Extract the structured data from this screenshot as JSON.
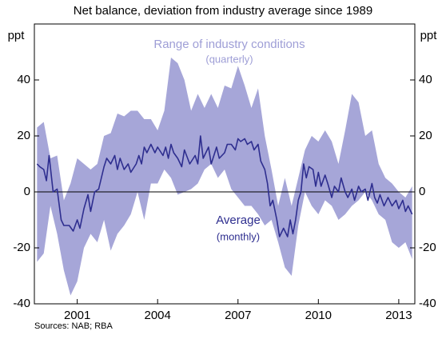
{
  "chart_data": {
    "type": "line",
    "subtitle": "Net balance, deviation from industry average since 1989",
    "y_label_left": "ppt",
    "y_label_right": "ppt",
    "source": "Sources: NAB; RBA",
    "xlim": [
      1999.4,
      2013.6
    ],
    "xticks": [
      2001,
      2004,
      2007,
      2010,
      2013
    ],
    "ylim": [
      -40,
      60
    ],
    "yticks": [
      -40,
      -20,
      0,
      20,
      40
    ],
    "zero_line": true,
    "range": {
      "name": "Range of industry conditions",
      "note": "(quarterly)",
      "color": "#a6a6d8",
      "x": [
        1999.5,
        1999.75,
        2000.0,
        2000.25,
        2000.5,
        2000.75,
        2001.0,
        2001.25,
        2001.5,
        2001.75,
        2002.0,
        2002.25,
        2002.5,
        2002.75,
        2003.0,
        2003.25,
        2003.5,
        2003.75,
        2004.0,
        2004.25,
        2004.5,
        2004.75,
        2005.0,
        2005.25,
        2005.5,
        2005.75,
        2006.0,
        2006.25,
        2006.5,
        2006.75,
        2007.0,
        2007.25,
        2007.5,
        2007.75,
        2008.0,
        2008.25,
        2008.5,
        2008.75,
        2009.0,
        2009.25,
        2009.5,
        2009.75,
        2010.0,
        2010.25,
        2010.5,
        2010.75,
        2011.0,
        2011.25,
        2011.5,
        2011.75,
        2012.0,
        2012.25,
        2012.5,
        2012.75,
        2013.0,
        2013.25,
        2013.5
      ],
      "upper": [
        23,
        25,
        12,
        13,
        -3,
        3,
        12,
        10,
        8,
        10,
        20,
        21,
        28,
        27,
        29,
        29,
        26,
        26,
        22,
        29,
        48,
        46,
        40,
        29,
        35,
        30,
        35,
        30,
        38,
        37,
        45,
        38,
        30,
        37,
        20,
        8,
        -5,
        5,
        -5,
        5,
        15,
        20,
        18,
        22,
        18,
        10,
        22,
        35,
        32,
        20,
        22,
        10,
        5,
        3,
        0,
        -2,
        2
      ],
      "lower": [
        -25,
        -22,
        -5,
        -15,
        -28,
        -37,
        -32,
        -20,
        -15,
        -18,
        -10,
        -21,
        -15,
        -12,
        -8,
        0,
        -10,
        3,
        3,
        8,
        5,
        -1,
        0,
        1,
        3,
        8,
        10,
        5,
        8,
        1,
        -2,
        -5,
        -5,
        -8,
        -12,
        -10,
        -18,
        -27,
        -30,
        -12,
        0,
        -5,
        -8,
        -3,
        -5,
        -10,
        -8,
        -5,
        -3,
        0,
        -3,
        -8,
        -10,
        -18,
        -20,
        -18,
        -24
      ]
    },
    "series": [
      {
        "name": "Average",
        "note": "(monthly)",
        "color": "#2e2e8f",
        "x": [
          1999.5,
          1999.6,
          1999.75,
          1999.85,
          1999.95,
          2000.1,
          2000.25,
          2000.4,
          2000.5,
          2000.7,
          2000.85,
          2001.0,
          2001.1,
          2001.25,
          2001.4,
          2001.5,
          2001.65,
          2001.8,
          2001.9,
          2002.0,
          2002.1,
          2002.25,
          2002.4,
          2002.5,
          2002.6,
          2002.75,
          2002.9,
          2003.0,
          2003.2,
          2003.3,
          2003.4,
          2003.5,
          2003.6,
          2003.75,
          2003.9,
          2004.0,
          2004.2,
          2004.3,
          2004.4,
          2004.5,
          2004.6,
          2004.75,
          2004.9,
          2005.0,
          2005.2,
          2005.4,
          2005.5,
          2005.6,
          2005.7,
          2005.9,
          2006.0,
          2006.2,
          2006.3,
          2006.5,
          2006.6,
          2006.75,
          2006.9,
          2007.0,
          2007.1,
          2007.25,
          2007.35,
          2007.5,
          2007.6,
          2007.75,
          2007.85,
          2008.0,
          2008.1,
          2008.2,
          2008.3,
          2008.45,
          2008.55,
          2008.7,
          2008.85,
          2008.95,
          2009.05,
          2009.15,
          2009.25,
          2009.35,
          2009.45,
          2009.55,
          2009.65,
          2009.8,
          2009.9,
          2010.0,
          2010.1,
          2010.25,
          2010.35,
          2010.5,
          2010.6,
          2010.75,
          2010.85,
          2011.0,
          2011.1,
          2011.25,
          2011.35,
          2011.5,
          2011.6,
          2011.75,
          2011.85,
          2012.0,
          2012.1,
          2012.2,
          2012.3,
          2012.45,
          2012.6,
          2012.75,
          2012.9,
          2013.0,
          2013.15,
          2013.25,
          2013.35,
          2013.5
        ],
        "values": [
          10,
          9,
          8,
          4,
          13,
          0,
          1,
          -10,
          -12,
          -12,
          -14,
          -10,
          -13,
          -6,
          -1,
          -7,
          0,
          1,
          5,
          9,
          12,
          10,
          13,
          8,
          12,
          8,
          10,
          7,
          10,
          13,
          10,
          16,
          14,
          17,
          14,
          16,
          13,
          16,
          12,
          17,
          14,
          12,
          9,
          15,
          10,
          13,
          10,
          20,
          12,
          16,
          10,
          16,
          12,
          14,
          17,
          17,
          15,
          19,
          18,
          19,
          17,
          18,
          15,
          17,
          11,
          8,
          3,
          -5,
          -3,
          -10,
          -16,
          -13,
          -16,
          -10,
          -15,
          -10,
          -3,
          0,
          10,
          5,
          9,
          8,
          2,
          7,
          2,
          6,
          3,
          -2,
          2,
          0,
          5,
          0,
          -2,
          1,
          -3,
          2,
          0,
          1,
          -3,
          3,
          -2,
          -4,
          -1,
          -5,
          -2,
          -5,
          -3,
          -6,
          -3,
          -7,
          -5,
          -8
        ]
      }
    ]
  }
}
